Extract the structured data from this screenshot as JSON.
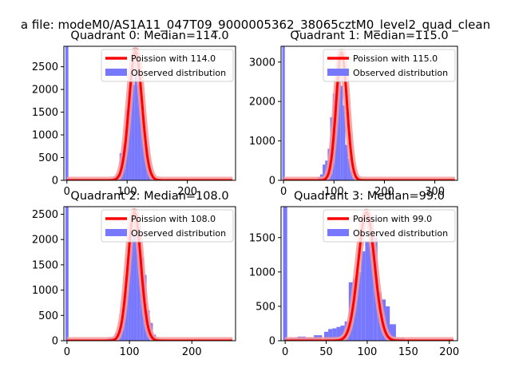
{
  "suptitle": "a file: modeM0/AS1A11_047T09_9000005362_38065cztM0_level2_quad_clean",
  "colors": {
    "hist": "#7878ff",
    "fit_line": "#ff0000",
    "fit_halo": "#f49a9a",
    "axis": "#000000",
    "background": "#ffffff"
  },
  "chart_data": [
    {
      "type": "bar",
      "title": "Quadrant 0: Median=114.0",
      "xlim": [
        -5,
        280
      ],
      "ylim": [
        0,
        2950
      ],
      "xticks": [
        0,
        100,
        200
      ],
      "yticks": [
        0,
        500,
        1000,
        1500,
        2000,
        2500
      ],
      "legend": {
        "placement": "top-right",
        "entries": [
          "Poission with 114.0",
          "Observed distribution"
        ]
      },
      "spike": {
        "x": 0,
        "height": 2950
      },
      "hist": {
        "x": [
          50,
          60,
          70,
          80,
          85,
          90,
          95,
          100,
          105,
          110,
          115,
          120,
          125,
          130,
          135,
          140,
          145,
          150,
          160
        ],
        "values": [
          5,
          10,
          30,
          70,
          140,
          600,
          800,
          1550,
          2000,
          2100,
          2750,
          2100,
          1500,
          800,
          450,
          150,
          60,
          20,
          5
        ]
      },
      "fit": {
        "mean": 114,
        "peak": 2850,
        "sigma": 10.7
      }
    },
    {
      "type": "bar",
      "title": "Quadrant 1: Median=115.0",
      "xlim": [
        -5,
        345
      ],
      "ylim": [
        0,
        3400
      ],
      "xticks": [
        0,
        100,
        200,
        300
      ],
      "yticks": [
        0,
        1000,
        2000,
        3000
      ],
      "legend": {
        "placement": "top-right",
        "entries": [
          "Poission with 115.0",
          "Observed distribution"
        ]
      },
      "spike": {
        "x": 0,
        "height": 3400
      },
      "hist": {
        "x": [
          50,
          60,
          70,
          75,
          80,
          85,
          90,
          95,
          100,
          105,
          110,
          115,
          120,
          125,
          130,
          135,
          140,
          145,
          150,
          160
        ],
        "values": [
          10,
          30,
          90,
          150,
          400,
          500,
          800,
          1600,
          2200,
          2400,
          3200,
          2400,
          1900,
          900,
          550,
          250,
          80,
          30,
          15,
          5
        ]
      },
      "fit": {
        "mean": 115,
        "peak": 3250,
        "sigma": 10.7
      }
    },
    {
      "type": "bar",
      "title": "Quadrant 2: Median=108.0",
      "xlim": [
        -5,
        270
      ],
      "ylim": [
        0,
        2650
      ],
      "xticks": [
        0,
        100,
        200
      ],
      "yticks": [
        0,
        500,
        1000,
        1500,
        2000,
        2500
      ],
      "legend": {
        "placement": "top-right",
        "entries": [
          "Poission with 108.0",
          "Observed distribution"
        ]
      },
      "spike": {
        "x": 0,
        "height": 2650
      },
      "hist": {
        "x": [
          50,
          60,
          70,
          80,
          85,
          90,
          95,
          100,
          105,
          110,
          115,
          120,
          125,
          130,
          135,
          140,
          145,
          150
        ],
        "values": [
          5,
          20,
          60,
          150,
          200,
          500,
          1000,
          1800,
          2150,
          2350,
          2400,
          1650,
          1300,
          600,
          350,
          120,
          50,
          15
        ]
      },
      "fit": {
        "mean": 108,
        "peak": 2550,
        "sigma": 10.4
      }
    },
    {
      "type": "bar",
      "title": "Quadrant 3: Median=99.0",
      "xlim": [
        -5,
        210
      ],
      "ylim": [
        0,
        1950
      ],
      "xticks": [
        0,
        50,
        100,
        150,
        200
      ],
      "yticks": [
        0,
        500,
        1000,
        1500
      ],
      "legend": {
        "placement": "top-right",
        "entries": [
          "Poission with 99.0",
          "Observed distribution"
        ]
      },
      "spike": {
        "x": 0,
        "height": 1950
      },
      "hist": {
        "x": [
          10,
          20,
          30,
          40,
          50,
          55,
          60,
          65,
          70,
          75,
          80,
          85,
          90,
          95,
          100,
          105,
          110,
          115,
          120,
          125,
          130,
          140,
          150
        ],
        "values": [
          40,
          60,
          50,
          80,
          130,
          170,
          180,
          200,
          220,
          280,
          850,
          900,
          1000,
          1300,
          1450,
          1800,
          1500,
          700,
          600,
          500,
          240,
          40,
          10
        ]
      },
      "fit": {
        "mean": 99,
        "peak": 1870,
        "sigma": 10.0
      }
    }
  ]
}
